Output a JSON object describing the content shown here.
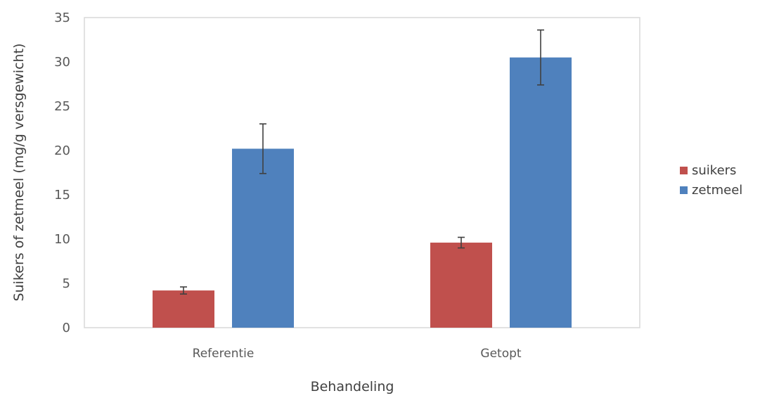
{
  "chart_data": {
    "type": "bar",
    "title": "",
    "xlabel": "Behandeling",
    "ylabel": "Suikers of zetmeel (mg/g versgewicht)",
    "ylim": [
      0,
      35
    ],
    "yticks": [
      0,
      5,
      10,
      15,
      20,
      25,
      30,
      35
    ],
    "categories": [
      "Referentie",
      "Getopt"
    ],
    "series": [
      {
        "name": "suikers",
        "color": "#c0504d",
        "values": [
          4.2,
          9.6
        ],
        "errors": [
          0.4,
          0.6
        ]
      },
      {
        "name": "zetmeel",
        "color": "#4f81bd",
        "values": [
          20.2,
          30.5
        ],
        "errors": [
          2.8,
          3.1
        ]
      }
    ],
    "grid": false,
    "legend": "right"
  }
}
